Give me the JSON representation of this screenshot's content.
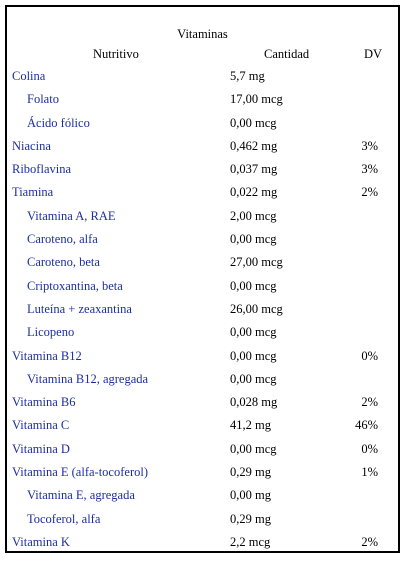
{
  "title": "Vitaminas",
  "headers": {
    "name": "Nutritivo",
    "amount": "Cantidad",
    "dv": "DV"
  },
  "rows": [
    {
      "name": "Colina",
      "amount": "5,7 mg",
      "dv": "",
      "indent": 0
    },
    {
      "name": "Folato",
      "amount": "17,00 mcg",
      "dv": "",
      "indent": 1
    },
    {
      "name": "Ácido fólico",
      "amount": "0,00 mcg",
      "dv": "",
      "indent": 1
    },
    {
      "name": "Niacina",
      "amount": "0,462 mg",
      "dv": "3%",
      "indent": 0
    },
    {
      "name": "Riboflavina",
      "amount": "0,037 mg",
      "dv": "3%",
      "indent": 0
    },
    {
      "name": "Tiamina",
      "amount": "0,022 mg",
      "dv": "2%",
      "indent": 0
    },
    {
      "name": "Vitamina A, RAE",
      "amount": "2,00 mcg",
      "dv": "",
      "indent": 1
    },
    {
      "name": "Caroteno, alfa",
      "amount": "0,00 mcg",
      "dv": "",
      "indent": 1
    },
    {
      "name": "Caroteno, beta",
      "amount": "27,00 mcg",
      "dv": "",
      "indent": 1
    },
    {
      "name": "Criptoxantina, beta",
      "amount": "0,00 mcg",
      "dv": "",
      "indent": 1
    },
    {
      "name": "Luteína + zeaxantina",
      "amount": "26,00 mcg",
      "dv": "",
      "indent": 1
    },
    {
      "name": "Licopeno",
      "amount": "0,00 mcg",
      "dv": "",
      "indent": 1
    },
    {
      "name": "Vitamina B12",
      "amount": "0,00 mcg",
      "dv": "0%",
      "indent": 0
    },
    {
      "name": "Vitamina B12, agregada",
      "amount": "0,00 mcg",
      "dv": "",
      "indent": 1
    },
    {
      "name": "Vitamina B6",
      "amount": "0,028 mg",
      "dv": "2%",
      "indent": 0
    },
    {
      "name": "Vitamina C",
      "amount": "41,2 mg",
      "dv": "46%",
      "indent": 0
    },
    {
      "name": "Vitamina D",
      "amount": "0,00 mcg",
      "dv": "0%",
      "indent": 0
    },
    {
      "name": "Vitamina E (alfa-tocoferol)",
      "amount": "0,29 mg",
      "dv": "1%",
      "indent": 0
    },
    {
      "name": "Vitamina E, agregada",
      "amount": "0,00 mg",
      "dv": "",
      "indent": 1
    },
    {
      "name": "Tocoferol, alfa",
      "amount": "0,29 mg",
      "dv": "",
      "indent": 1
    },
    {
      "name": "Vitamina K",
      "amount": "2,2 mcg",
      "dv": "2%",
      "indent": 0
    }
  ],
  "colors": {
    "link": "#1c2ea0",
    "text": "#000000",
    "border": "#000000"
  }
}
